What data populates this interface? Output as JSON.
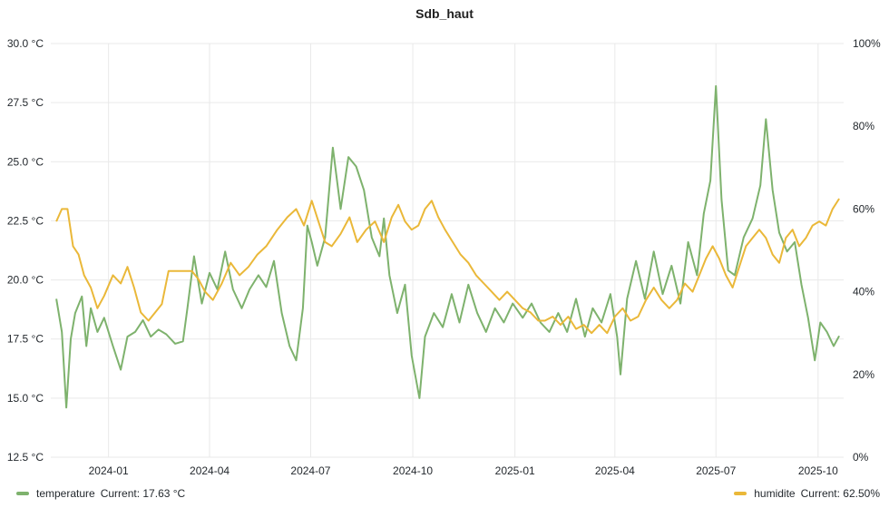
{
  "chart_data": {
    "type": "line",
    "title": "Sdb_haut",
    "x_tick_labels": [
      "2024-01",
      "2024-04",
      "2024-07",
      "2024-10",
      "2025-01",
      "2025-04",
      "2025-07",
      "2025-10"
    ],
    "y_left": {
      "ticks": [
        "12.5 °C",
        "15.0 °C",
        "17.5 °C",
        "20.0 °C",
        "22.5 °C",
        "25.0 °C",
        "27.5 °C",
        "30.0 °C"
      ],
      "range": [
        12.5,
        30.0
      ],
      "unit": "°C"
    },
    "y_right": {
      "ticks": [
        "0%",
        "20%",
        "40%",
        "60%",
        "80%",
        "100%"
      ],
      "range": [
        0,
        100
      ],
      "unit": "%"
    },
    "grid": true,
    "legend_position": "bottom",
    "series": [
      {
        "name": "temperature",
        "axis": "left",
        "color": "#7eb26d",
        "current_label": "Current: 17.63 °C",
        "points": [
          [
            "2023-11-15",
            19.2
          ],
          [
            "2023-11-20",
            17.8
          ],
          [
            "2023-11-24",
            14.6
          ],
          [
            "2023-11-28",
            17.5
          ],
          [
            "2023-12-02",
            18.6
          ],
          [
            "2023-12-08",
            19.3
          ],
          [
            "2023-12-12",
            17.2
          ],
          [
            "2023-12-16",
            18.8
          ],
          [
            "2023-12-22",
            17.8
          ],
          [
            "2023-12-28",
            18.4
          ],
          [
            "2024-01-05",
            17.2
          ],
          [
            "2024-01-12",
            16.2
          ],
          [
            "2024-01-18",
            17.6
          ],
          [
            "2024-01-25",
            17.8
          ],
          [
            "2024-02-01",
            18.3
          ],
          [
            "2024-02-08",
            17.6
          ],
          [
            "2024-02-15",
            17.9
          ],
          [
            "2024-02-22",
            17.7
          ],
          [
            "2024-03-01",
            17.3
          ],
          [
            "2024-03-08",
            17.4
          ],
          [
            "2024-03-12",
            18.8
          ],
          [
            "2024-03-18",
            21.0
          ],
          [
            "2024-03-25",
            19.0
          ],
          [
            "2024-04-01",
            20.3
          ],
          [
            "2024-04-08",
            19.6
          ],
          [
            "2024-04-15",
            21.2
          ],
          [
            "2024-04-22",
            19.6
          ],
          [
            "2024-04-30",
            18.8
          ],
          [
            "2024-05-07",
            19.6
          ],
          [
            "2024-05-15",
            20.2
          ],
          [
            "2024-05-22",
            19.7
          ],
          [
            "2024-05-29",
            20.8
          ],
          [
            "2024-06-05",
            18.6
          ],
          [
            "2024-06-12",
            17.2
          ],
          [
            "2024-06-18",
            16.6
          ],
          [
            "2024-06-24",
            18.8
          ],
          [
            "2024-06-28",
            22.3
          ],
          [
            "2024-07-02",
            21.6
          ],
          [
            "2024-07-07",
            20.6
          ],
          [
            "2024-07-14",
            21.8
          ],
          [
            "2024-07-21",
            25.6
          ],
          [
            "2024-07-28",
            23.0
          ],
          [
            "2024-08-04",
            25.2
          ],
          [
            "2024-08-11",
            24.8
          ],
          [
            "2024-08-18",
            23.8
          ],
          [
            "2024-08-25",
            21.8
          ],
          [
            "2024-09-01",
            21.0
          ],
          [
            "2024-09-05",
            22.6
          ],
          [
            "2024-09-10",
            20.2
          ],
          [
            "2024-09-17",
            18.6
          ],
          [
            "2024-09-24",
            19.8
          ],
          [
            "2024-09-30",
            16.8
          ],
          [
            "2024-10-07",
            15.0
          ],
          [
            "2024-10-12",
            17.6
          ],
          [
            "2024-10-20",
            18.6
          ],
          [
            "2024-10-28",
            18.0
          ],
          [
            "2024-11-05",
            19.4
          ],
          [
            "2024-11-12",
            18.2
          ],
          [
            "2024-11-20",
            19.8
          ],
          [
            "2024-11-28",
            18.6
          ],
          [
            "2024-12-06",
            17.8
          ],
          [
            "2024-12-14",
            18.8
          ],
          [
            "2024-12-22",
            18.2
          ],
          [
            "2024-12-30",
            19.0
          ],
          [
            "2025-01-08",
            18.4
          ],
          [
            "2025-01-16",
            19.0
          ],
          [
            "2025-01-24",
            18.2
          ],
          [
            "2025-02-01",
            17.8
          ],
          [
            "2025-02-09",
            18.6
          ],
          [
            "2025-02-17",
            17.8
          ],
          [
            "2025-02-25",
            19.2
          ],
          [
            "2025-03-05",
            17.6
          ],
          [
            "2025-03-12",
            18.8
          ],
          [
            "2025-03-20",
            18.2
          ],
          [
            "2025-03-28",
            19.4
          ],
          [
            "2025-04-03",
            17.6
          ],
          [
            "2025-04-06",
            16.0
          ],
          [
            "2025-04-12",
            19.2
          ],
          [
            "2025-04-20",
            20.8
          ],
          [
            "2025-04-28",
            19.2
          ],
          [
            "2025-05-06",
            21.2
          ],
          [
            "2025-05-14",
            19.4
          ],
          [
            "2025-05-22",
            20.6
          ],
          [
            "2025-05-30",
            19.0
          ],
          [
            "2025-06-06",
            21.6
          ],
          [
            "2025-06-14",
            20.2
          ],
          [
            "2025-06-20",
            22.8
          ],
          [
            "2025-06-26",
            24.2
          ],
          [
            "2025-07-01",
            28.2
          ],
          [
            "2025-07-06",
            23.4
          ],
          [
            "2025-07-12",
            20.4
          ],
          [
            "2025-07-18",
            20.2
          ],
          [
            "2025-07-26",
            21.8
          ],
          [
            "2025-08-03",
            22.6
          ],
          [
            "2025-08-10",
            24.0
          ],
          [
            "2025-08-15",
            26.8
          ],
          [
            "2025-08-21",
            23.8
          ],
          [
            "2025-08-27",
            22.0
          ],
          [
            "2025-09-03",
            21.2
          ],
          [
            "2025-09-10",
            21.6
          ],
          [
            "2025-09-16",
            19.8
          ],
          [
            "2025-09-22",
            18.4
          ],
          [
            "2025-09-28",
            16.6
          ],
          [
            "2025-10-03",
            18.2
          ],
          [
            "2025-10-09",
            17.8
          ],
          [
            "2025-10-15",
            17.2
          ],
          [
            "2025-10-20",
            17.63
          ]
        ]
      },
      {
        "name": "humidite",
        "axis": "right",
        "color": "#eab839",
        "current_label": "Current: 62.50%",
        "points": [
          [
            "2023-11-15",
            57
          ],
          [
            "2023-11-20",
            60
          ],
          [
            "2023-11-25",
            60
          ],
          [
            "2023-11-30",
            51
          ],
          [
            "2023-12-05",
            49
          ],
          [
            "2023-12-10",
            44
          ],
          [
            "2023-12-16",
            41
          ],
          [
            "2023-12-22",
            36
          ],
          [
            "2023-12-28",
            39
          ],
          [
            "2024-01-05",
            44
          ],
          [
            "2024-01-12",
            42
          ],
          [
            "2024-01-18",
            46
          ],
          [
            "2024-01-24",
            41
          ],
          [
            "2024-01-30",
            35
          ],
          [
            "2024-02-06",
            33
          ],
          [
            "2024-02-12",
            35
          ],
          [
            "2024-02-18",
            37
          ],
          [
            "2024-02-24",
            45
          ],
          [
            "2024-03-02",
            45
          ],
          [
            "2024-03-10",
            45
          ],
          [
            "2024-03-16",
            45
          ],
          [
            "2024-03-22",
            43
          ],
          [
            "2024-03-28",
            40
          ],
          [
            "2024-04-04",
            38
          ],
          [
            "2024-04-12",
            42
          ],
          [
            "2024-04-20",
            47
          ],
          [
            "2024-04-28",
            44
          ],
          [
            "2024-05-06",
            46
          ],
          [
            "2024-05-14",
            49
          ],
          [
            "2024-05-22",
            51
          ],
          [
            "2024-06-01",
            55
          ],
          [
            "2024-06-10",
            58
          ],
          [
            "2024-06-18",
            60
          ],
          [
            "2024-06-25",
            56
          ],
          [
            "2024-07-02",
            62
          ],
          [
            "2024-07-08",
            57
          ],
          [
            "2024-07-14",
            52
          ],
          [
            "2024-07-20",
            51
          ],
          [
            "2024-07-28",
            54
          ],
          [
            "2024-08-05",
            58
          ],
          [
            "2024-08-12",
            52
          ],
          [
            "2024-08-20",
            55
          ],
          [
            "2024-08-28",
            57
          ],
          [
            "2024-09-05",
            52
          ],
          [
            "2024-09-12",
            58
          ],
          [
            "2024-09-18",
            61
          ],
          [
            "2024-09-24",
            57
          ],
          [
            "2024-09-30",
            55
          ],
          [
            "2024-10-06",
            56
          ],
          [
            "2024-10-12",
            60
          ],
          [
            "2024-10-18",
            62
          ],
          [
            "2024-10-24",
            58
          ],
          [
            "2024-10-30",
            55
          ],
          [
            "2024-11-06",
            52
          ],
          [
            "2024-11-13",
            49
          ],
          [
            "2024-11-20",
            47
          ],
          [
            "2024-11-27",
            44
          ],
          [
            "2024-12-04",
            42
          ],
          [
            "2024-12-11",
            40
          ],
          [
            "2024-12-18",
            38
          ],
          [
            "2024-12-25",
            40
          ],
          [
            "2025-01-01",
            38
          ],
          [
            "2025-01-08",
            36
          ],
          [
            "2025-01-15",
            35
          ],
          [
            "2025-01-22",
            33
          ],
          [
            "2025-01-28",
            33
          ],
          [
            "2025-02-04",
            34
          ],
          [
            "2025-02-11",
            32
          ],
          [
            "2025-02-18",
            34
          ],
          [
            "2025-02-25",
            31
          ],
          [
            "2025-03-04",
            32
          ],
          [
            "2025-03-11",
            30
          ],
          [
            "2025-03-18",
            32
          ],
          [
            "2025-03-25",
            30
          ],
          [
            "2025-04-01",
            34
          ],
          [
            "2025-04-08",
            36
          ],
          [
            "2025-04-15",
            33
          ],
          [
            "2025-04-22",
            34
          ],
          [
            "2025-04-29",
            38
          ],
          [
            "2025-05-06",
            41
          ],
          [
            "2025-05-13",
            38
          ],
          [
            "2025-05-20",
            36
          ],
          [
            "2025-05-27",
            38
          ],
          [
            "2025-06-03",
            42
          ],
          [
            "2025-06-10",
            40
          ],
          [
            "2025-06-16",
            44
          ],
          [
            "2025-06-22",
            48
          ],
          [
            "2025-06-28",
            51
          ],
          [
            "2025-07-04",
            48
          ],
          [
            "2025-07-10",
            44
          ],
          [
            "2025-07-16",
            41
          ],
          [
            "2025-07-22",
            46
          ],
          [
            "2025-07-28",
            51
          ],
          [
            "2025-08-03",
            53
          ],
          [
            "2025-08-09",
            55
          ],
          [
            "2025-08-15",
            53
          ],
          [
            "2025-08-21",
            49
          ],
          [
            "2025-08-27",
            47
          ],
          [
            "2025-09-02",
            53
          ],
          [
            "2025-09-08",
            55
          ],
          [
            "2025-09-14",
            51
          ],
          [
            "2025-09-20",
            53
          ],
          [
            "2025-09-26",
            56
          ],
          [
            "2025-10-02",
            57
          ],
          [
            "2025-10-08",
            56
          ],
          [
            "2025-10-14",
            60
          ],
          [
            "2025-10-20",
            62.5
          ]
        ]
      }
    ]
  }
}
